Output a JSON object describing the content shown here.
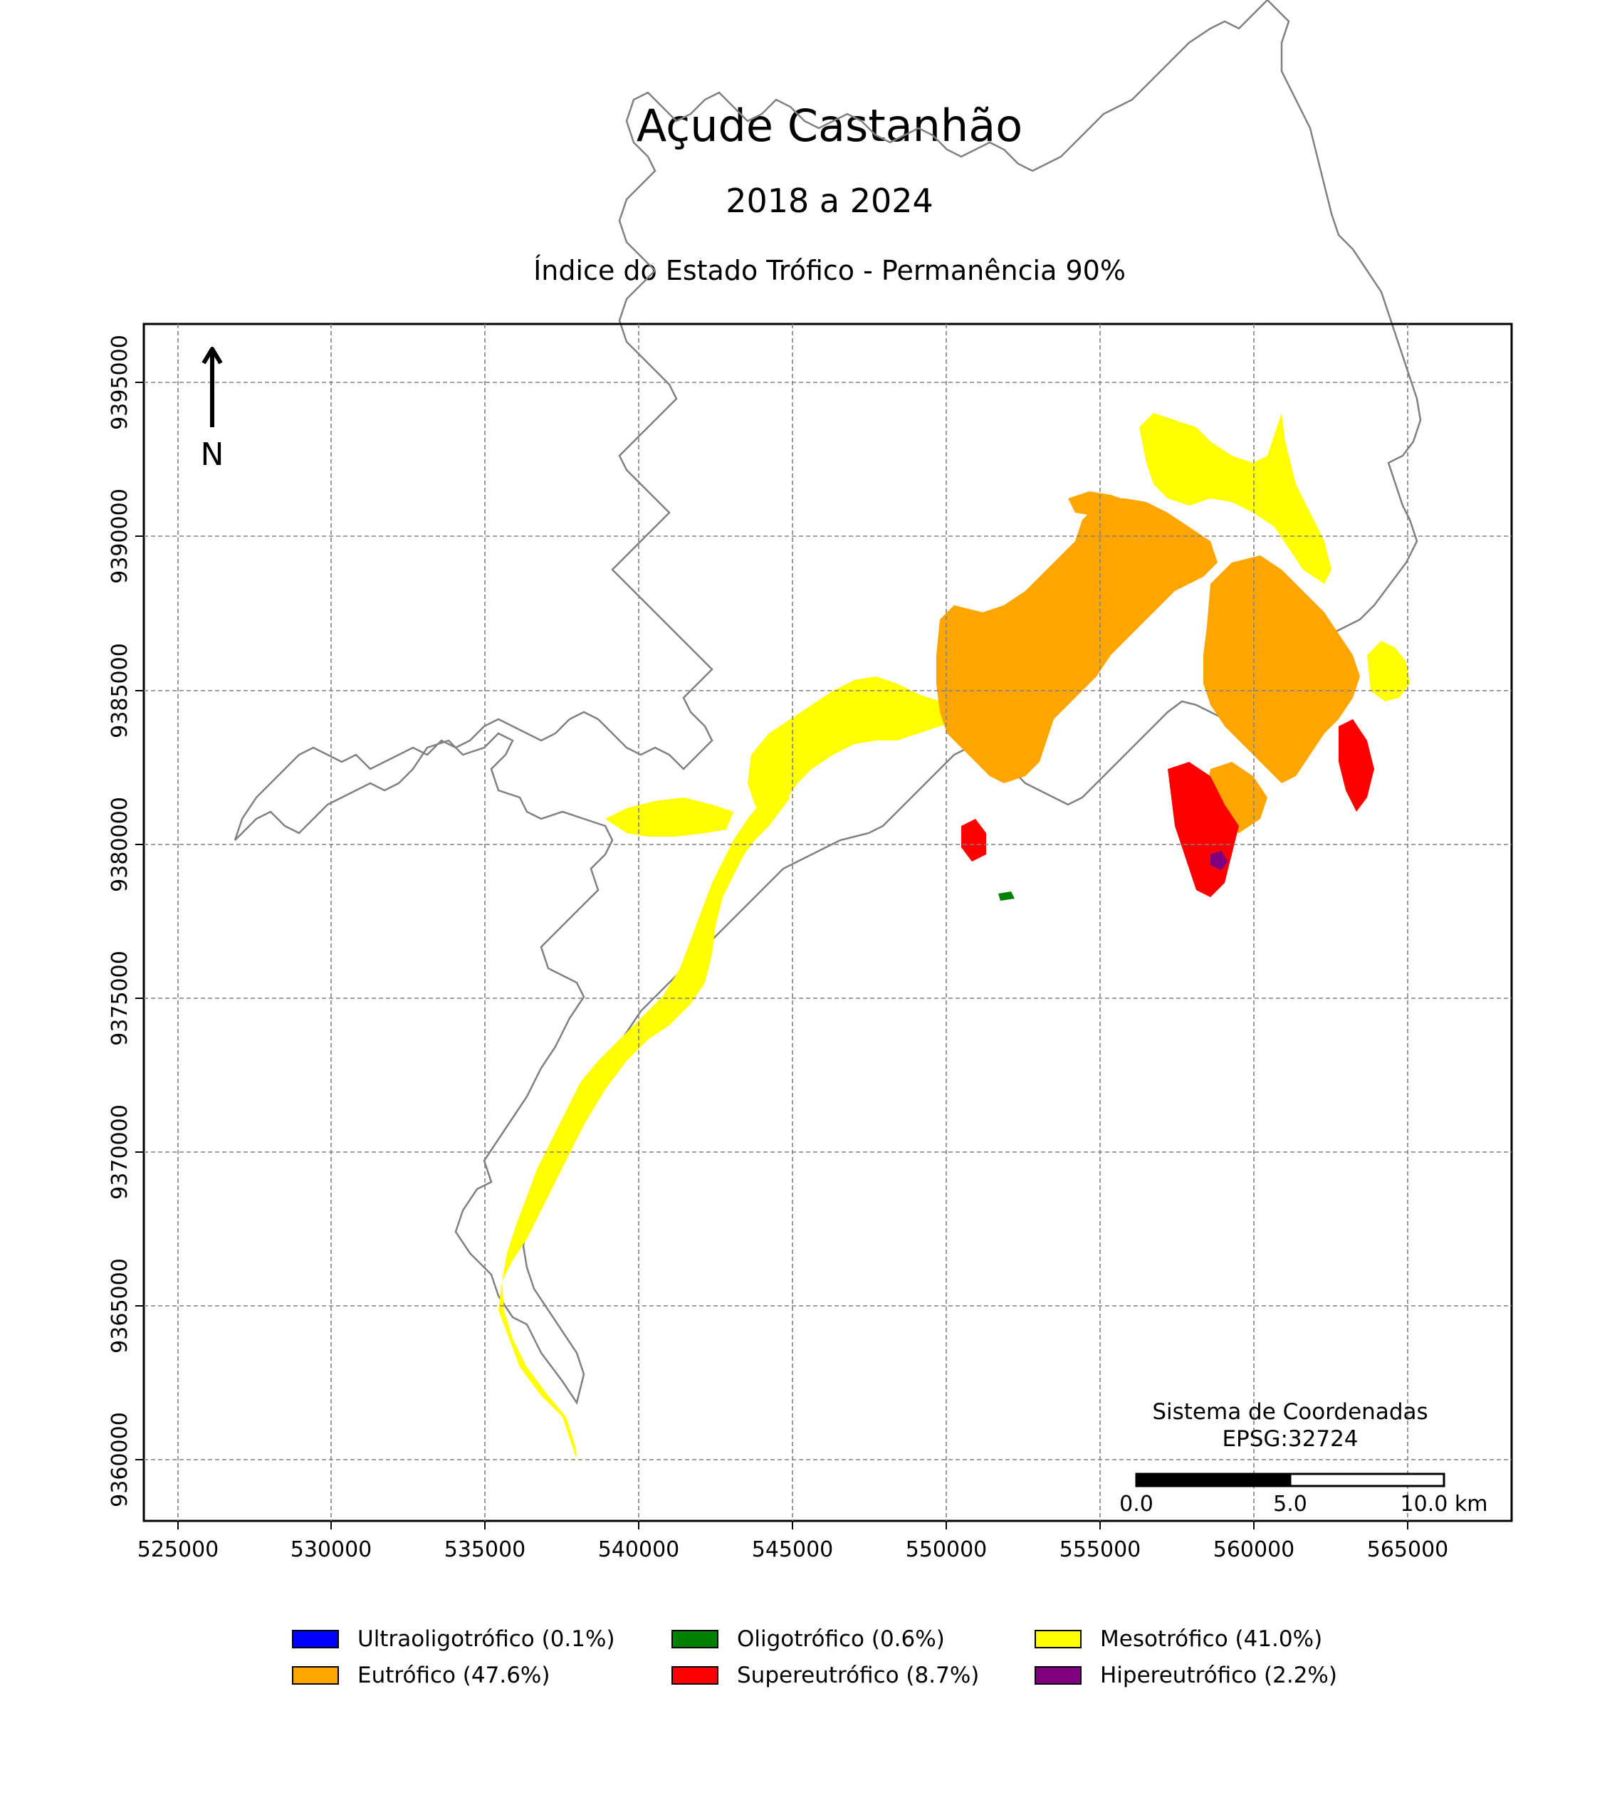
{
  "title": "Açude Castanhão",
  "subtitle": "2018 a 2024",
  "index_title": "Índice do Estado Trófico - Permanência 90%",
  "north_label": "N",
  "crs_line1": "Sistema de Coordenadas",
  "crs_line2": "EPSG:32724",
  "scalebar": {
    "labels": [
      "0.0",
      "5.0",
      "10.0 km"
    ]
  },
  "axes": {
    "x_ticks": [
      "525000",
      "530000",
      "535000",
      "540000",
      "545000",
      "550000",
      "555000",
      "560000",
      "565000"
    ],
    "y_ticks": [
      "9360000",
      "9365000",
      "9370000",
      "9375000",
      "9380000",
      "9385000",
      "9390000",
      "9395000"
    ]
  },
  "legend": [
    {
      "label": "Ultraoligotrófico (0.1%)",
      "color": "#0000ff"
    },
    {
      "label": "Oligotrófico (0.6%)",
      "color": "#008000"
    },
    {
      "label": "Mesotrófico (41.0%)",
      "color": "#ffff00"
    },
    {
      "label": "Eutrófico (47.6%)",
      "color": "#ffa500"
    },
    {
      "label": "Supereutrófico (8.7%)",
      "color": "#ff0000"
    },
    {
      "label": "Hipereutrófico (2.2%)",
      "color": "#800080"
    }
  ],
  "colors": {
    "outline": "#808080",
    "grid": "#808080",
    "mesotrofico": "#ffff00",
    "eutrofico": "#ffa500",
    "supereutrofico": "#ff0000",
    "hipereutrofico": "#800080",
    "oligotrofico": "#008000"
  }
}
